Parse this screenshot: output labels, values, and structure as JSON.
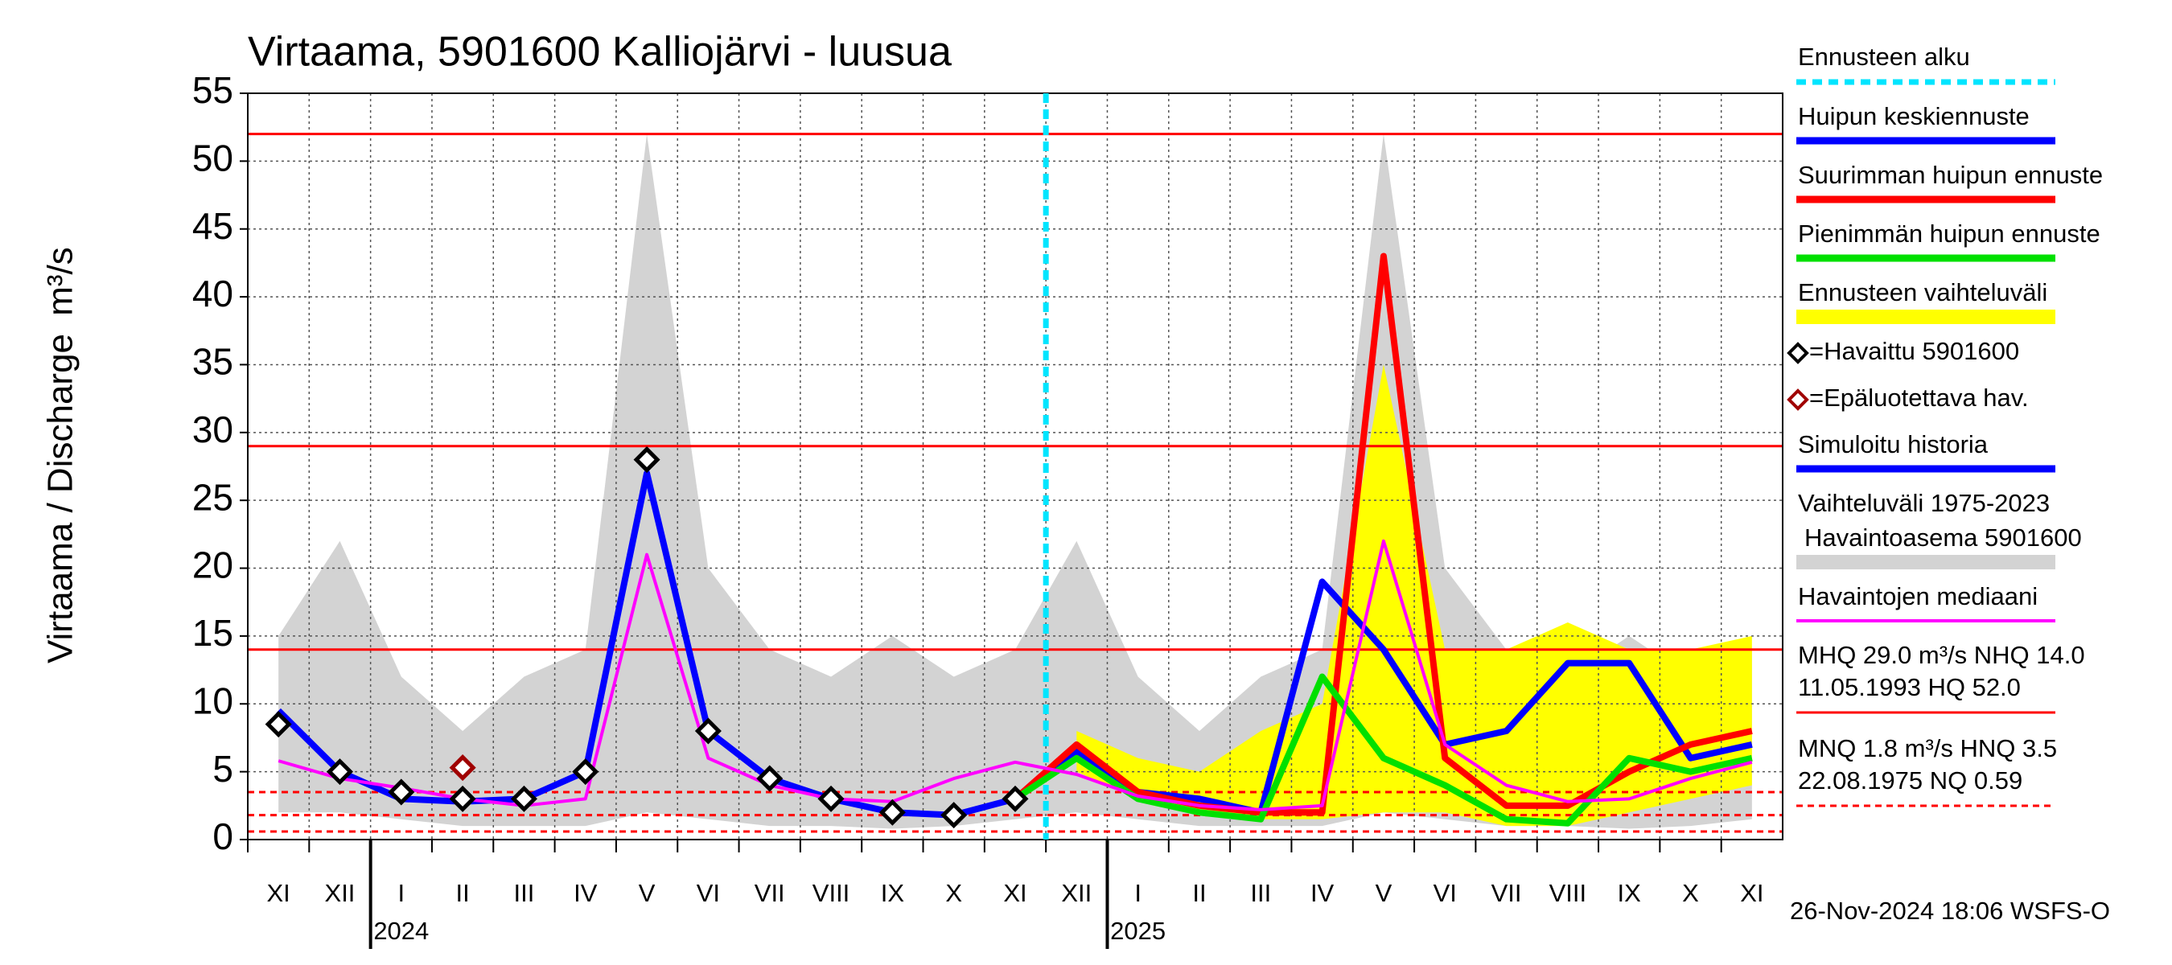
{
  "chart_data": {
    "type": "line",
    "title": "Virtaama, 5901600 Kalliojärvi - luusua",
    "y_label": "Virtaama / Discharge",
    "y_unit": "m³/s",
    "footer": "26-Nov-2024 18:06 WSFS-O",
    "categories": [
      "XI",
      "XII",
      "I",
      "II",
      "III",
      "IV",
      "V",
      "VI",
      "VII",
      "VIII",
      "IX",
      "X",
      "XI",
      "XII",
      "I",
      "II",
      "III",
      "IV",
      "V",
      "VI",
      "VII",
      "VIII",
      "IX",
      "X",
      "XI"
    ],
    "year_categories": [
      null,
      null,
      "2024",
      null,
      null,
      null,
      null,
      null,
      null,
      null,
      null,
      null,
      null,
      null,
      "2025",
      null,
      null,
      null,
      null,
      null,
      null,
      null,
      null,
      null,
      null
    ],
    "ylim": [
      0,
      55
    ],
    "yticks": [
      0,
      5,
      10,
      15,
      20,
      25,
      30,
      35,
      40,
      45,
      50,
      55
    ],
    "grid": true,
    "forecast_start": {
      "label": "Ennusteen alku",
      "color": "#00e5ff"
    },
    "series": [
      {
        "name": "Huipun keskiennuste",
        "style": "line",
        "color": "#0000ff",
        "values": [
          null,
          null,
          null,
          null,
          null,
          null,
          null,
          null,
          null,
          null,
          null,
          null,
          3,
          6.5,
          3.5,
          3,
          2,
          19,
          14,
          7,
          8,
          13,
          13,
          6,
          7
        ]
      },
      {
        "name": "Suurimman huipun ennuste",
        "style": "line",
        "color": "#ff0000",
        "values": [
          null,
          null,
          null,
          null,
          null,
          null,
          null,
          null,
          null,
          null,
          null,
          null,
          3,
          7,
          3.5,
          2.5,
          2,
          2,
          43,
          6,
          2.5,
          2.5,
          5,
          7,
          8
        ]
      },
      {
        "name": "Pienimmän huipun ennuste",
        "style": "line",
        "color": "#00e000",
        "values": [
          null,
          null,
          null,
          null,
          null,
          null,
          null,
          null,
          null,
          null,
          null,
          null,
          3,
          6,
          3,
          2,
          1.5,
          12,
          6,
          4,
          1.5,
          1.2,
          6,
          5,
          6
        ]
      },
      {
        "name": "Ennusteen vaihteluväli",
        "style": "band",
        "color": "#ffff00",
        "upper": [
          null,
          null,
          null,
          null,
          null,
          null,
          null,
          null,
          null,
          null,
          null,
          null,
          null,
          8,
          6,
          5,
          8,
          10,
          35,
          14,
          14,
          16,
          14,
          14,
          15
        ],
        "lower": [
          null,
          null,
          null,
          null,
          null,
          null,
          null,
          null,
          null,
          null,
          null,
          null,
          null,
          5,
          3,
          2,
          1.5,
          1.5,
          2,
          2,
          1,
          1,
          2,
          3,
          4
        ]
      },
      {
        "name": "=Havaittu 5901600",
        "style": "markers",
        "color": "#000000",
        "values": [
          8.5,
          5,
          3.5,
          3,
          3,
          5,
          28,
          8,
          4.5,
          3,
          2,
          1.8,
          3,
          null,
          null,
          null,
          null,
          null,
          null,
          null,
          null,
          null,
          null,
          null,
          null
        ]
      },
      {
        "name": "=Epäluotettava hav.",
        "style": "markers",
        "color": "#a00000",
        "values": [
          null,
          null,
          null,
          5.3,
          null,
          null,
          null,
          null,
          null,
          null,
          null,
          null,
          null,
          null,
          null,
          null,
          null,
          null,
          null,
          null,
          null,
          null,
          null,
          null,
          null
        ]
      },
      {
        "name": "Simuloitu historia",
        "style": "line",
        "color": "#0000ff",
        "values": [
          9.5,
          5,
          3,
          2.8,
          3,
          5,
          27,
          8,
          4.5,
          3,
          2,
          1.8,
          3,
          null,
          null,
          null,
          null,
          null,
          null,
          null,
          null,
          null,
          null,
          null,
          null
        ]
      },
      {
        "name": [
          "Vaihteluväli 1975-2023",
          "Havaintoasema 5901600"
        ],
        "style": "band",
        "color": "#d3d3d3",
        "upper": [
          15,
          22,
          12,
          8,
          12,
          14,
          52,
          20,
          14,
          12,
          15,
          12,
          14,
          22,
          12,
          8,
          12,
          14,
          52,
          20,
          14,
          12,
          15,
          12,
          14
        ],
        "lower": [
          2,
          2,
          1.5,
          1,
          1,
          1,
          2,
          1.5,
          1,
          1,
          0.8,
          1,
          1.5,
          2,
          1.5,
          1,
          1,
          1,
          2,
          1.5,
          1,
          1,
          0.8,
          1,
          1.5
        ]
      },
      {
        "name": "Havaintojen mediaani",
        "style": "line",
        "color": "#ff00ff",
        "values": [
          5.8,
          4.5,
          3.8,
          3,
          2.5,
          3,
          21,
          6,
          4,
          3,
          2.8,
          4.5,
          5.7,
          4.8,
          3.2,
          2.5,
          2.2,
          2.5,
          22,
          7,
          4,
          2.8,
          3,
          4.5,
          5.7
        ]
      }
    ],
    "reference_lines": [
      {
        "value": 52,
        "color": "#ff0000",
        "dashed": false
      },
      {
        "value": 29,
        "color": "#ff0000",
        "dashed": false
      },
      {
        "value": 14,
        "color": "#ff0000",
        "dashed": false
      },
      {
        "value": 3.5,
        "color": "#ff0000",
        "dashed": true
      },
      {
        "value": 1.8,
        "color": "#ff0000",
        "dashed": true
      },
      {
        "value": 0.59,
        "color": "#ff0000",
        "dashed": true
      }
    ],
    "legend_notes": [
      {
        "lines": [
          "MHQ 29.0 m³/s NHQ 14.0",
          "11.05.1993 HQ 52.0"
        ],
        "color": "#ff0000",
        "dashed": false
      },
      {
        "lines": [
          "MNQ  1.8 m³/s HNQ  3.5",
          "22.08.1975 NQ 0.59"
        ],
        "color": "#ff0000",
        "dashed": true
      }
    ]
  }
}
